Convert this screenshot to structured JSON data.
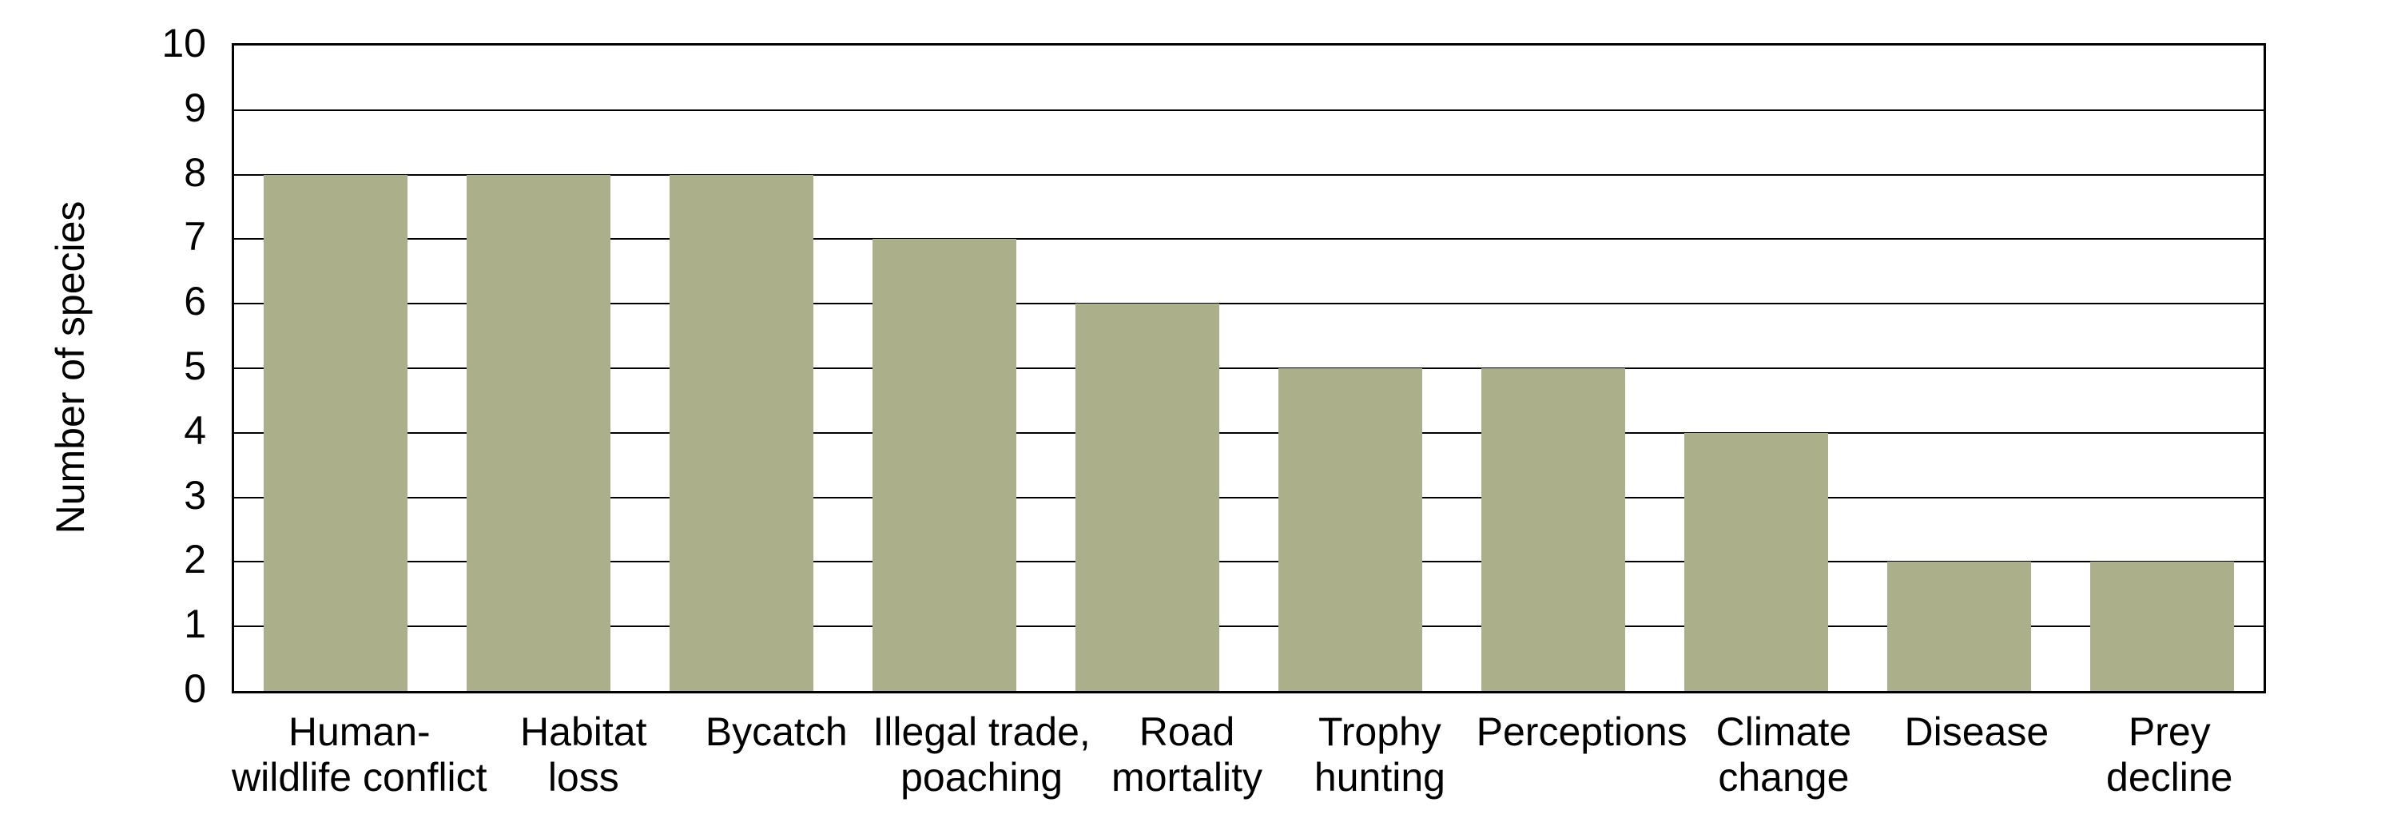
{
  "chart_data": {
    "type": "bar",
    "categories": [
      "Human-\nwildlife conflict",
      "Habitat\nloss",
      "Bycatch",
      "Illegal trade,\npoaching",
      "Road\nmortality",
      "Trophy\nhunting",
      "Perceptions",
      "Climate\nchange",
      "Disease",
      "Prey\ndecline"
    ],
    "values": [
      8,
      8,
      8,
      7,
      6,
      5,
      5,
      4,
      2,
      2
    ],
    "title": "",
    "xlabel": "",
    "ylabel": "Number of species",
    "ylim": [
      0,
      10
    ],
    "ytick_step": 1,
    "ytick_labels": [
      "0",
      "1",
      "2",
      "3",
      "4",
      "5",
      "6",
      "7",
      "8",
      "9",
      "10"
    ],
    "grid": true,
    "legend": false,
    "bar_color": "#ACB08A",
    "gridline_color": "#000000",
    "axis_color": "#000000",
    "text_color": "#000000",
    "background_color": "#FFFFFF"
  }
}
